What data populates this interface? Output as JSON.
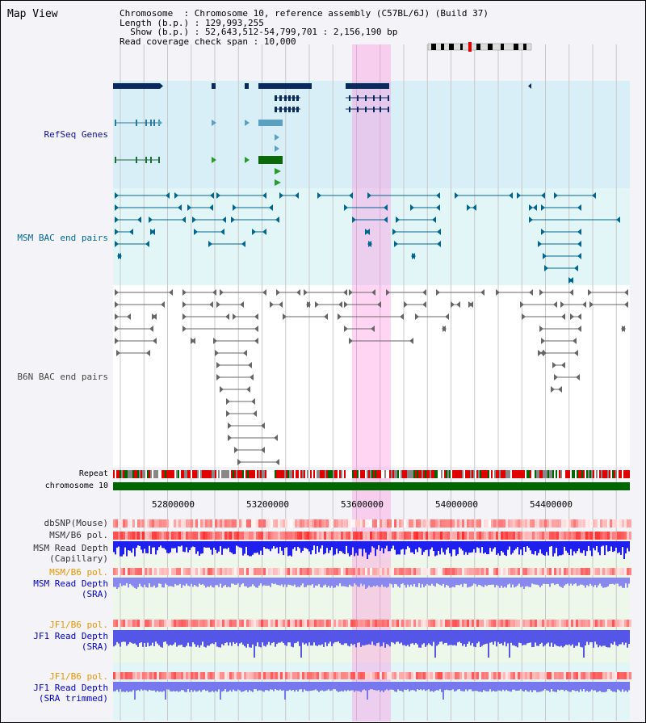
{
  "view": {
    "title": "Map View"
  },
  "info": {
    "chromosome_label": "Chromosome",
    "chromosome_value": "Chromosome 10, reference assembly (C57BL/6J) (Build 37)",
    "length_label": "Length (b.p.)",
    "length_value": "129,993,255",
    "show_label": "Show (b.p.)",
    "show_value": "52,643,512-54,799,701 : 2,156,190 bp",
    "coverage_label": "Read coverage check span",
    "coverage_value": "10,000"
  },
  "tracks": {
    "refseq": {
      "label": "RefSeq Genes",
      "color": "#1010a0"
    },
    "msm_bac": {
      "label": "MSM BAC end pairs",
      "color": "#006699"
    },
    "b6n_bac": {
      "label": "B6N BAC end pairs",
      "color": "#444444"
    },
    "repeat": {
      "label": "Repeat"
    },
    "chromosome": {
      "label": "chromosome 10",
      "color": "#006600"
    },
    "dbsnp": {
      "label": "dbSNP(Mouse)"
    },
    "msm_b6_pol": {
      "label": "MSM/B6 pol."
    },
    "msm_depth_cap": {
      "label1": "MSM Read Depth",
      "label2": "(Capillary)"
    },
    "msm_b6_pol2": {
      "label": "MSM/B6 pol.",
      "color": "#e69500"
    },
    "msm_depth_sra": {
      "label1": "MSM Read Depth",
      "label2": "(SRA)",
      "color": "#0000cc"
    },
    "jf1_b6_pol": {
      "label": "JF1/B6 pol.",
      "color": "#e69500"
    },
    "jf1_depth_sra": {
      "label1": "JF1 Read Depth",
      "label2": "(SRA)",
      "color": "#0000cc"
    },
    "jf1_b6_pol2": {
      "label": "JF1/B6 pol.",
      "color": "#e69500"
    },
    "jf1_depth_trim": {
      "label1": "JF1 Read Depth",
      "label2": "(SRA trimmed)",
      "color": "#0000cc"
    }
  },
  "axis": {
    "ticks": [
      "52800000",
      "53200000",
      "53600000",
      "54000000",
      "54400000"
    ],
    "range_start": 52643512,
    "range_end": 54799701
  },
  "highlight": {
    "start": 53643512,
    "end": 53805000
  }
}
